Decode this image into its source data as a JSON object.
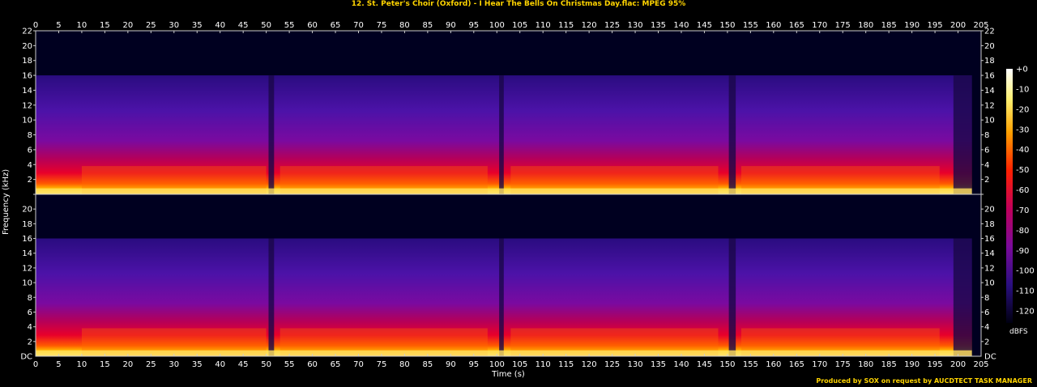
{
  "title": "12. St. Peter's Choir (Oxford) - I Hear The Bells On Christmas Day.flac: MPEG 95%",
  "credit": "Produced by SOX on request by AUCDTECT TASK MANAGER",
  "chart_data": {
    "type": "heatmap",
    "title": "12. St. Peter's Choir (Oxford) - I Hear The Bells On Christmas Day.flac: MPEG 95%",
    "xlabel": "Time (s)",
    "ylabel": "Frequency (kHz)",
    "colorbar_label": "dBFS",
    "x_ticks": [
      0,
      5,
      10,
      15,
      20,
      25,
      30,
      35,
      40,
      45,
      50,
      55,
      60,
      65,
      70,
      75,
      80,
      85,
      90,
      95,
      100,
      105,
      110,
      115,
      120,
      125,
      130,
      135,
      140,
      145,
      150,
      155,
      160,
      165,
      170,
      175,
      180,
      185,
      190,
      195,
      200,
      205
    ],
    "y_ticks": [
      2,
      4,
      6,
      8,
      10,
      12,
      14,
      16,
      18,
      20,
      22
    ],
    "y_bottom_label": "DC",
    "colorbar_ticks": [
      "+0",
      "-10",
      "-20",
      "-30",
      "-40",
      "-50",
      "-60",
      "-70",
      "-80",
      "-90",
      "-100",
      "-110",
      "-120"
    ],
    "xlim": [
      0,
      205
    ],
    "ylim_khz": [
      0,
      22
    ],
    "channels": 2,
    "lowpass_cutoff_khz": 16,
    "track_end_s": 203
  }
}
